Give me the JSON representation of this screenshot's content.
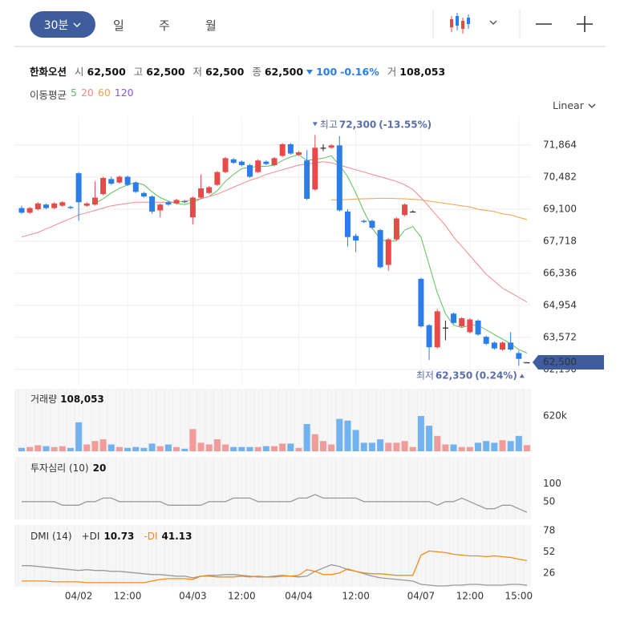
{
  "toolbar": {
    "tabs": [
      "30분",
      "일",
      "주",
      "월"
    ]
  },
  "quote": {
    "name": "한화오션",
    "fields": [
      {
        "label": "시",
        "value": "62,500"
      },
      {
        "label": "고",
        "value": "62,500"
      },
      {
        "label": "저",
        "value": "62,500"
      },
      {
        "label": "종",
        "value": "62,500"
      }
    ],
    "change": "100",
    "change_pct": "-0.16%",
    "volume_label": "거",
    "volume": "108,053"
  },
  "chart_data": [
    {
      "type": "candlestick",
      "categories": [
        null,
        null,
        null,
        null,
        null,
        null,
        null,
        "04/02",
        null,
        null,
        null,
        null,
        null,
        "12:00",
        null,
        null,
        null,
        null,
        null,
        null,
        null,
        "04/03",
        null,
        null,
        null,
        null,
        null,
        "12:00",
        null,
        null,
        null,
        null,
        null,
        null,
        "04/04",
        null,
        null,
        null,
        null,
        null,
        null,
        "12:00",
        null,
        null,
        null,
        null,
        null,
        null,
        null,
        "04/07",
        null,
        null,
        null,
        null,
        null,
        "12:00",
        null,
        null,
        null,
        null,
        null,
        "15:00",
        null
      ],
      "open": [
        69150,
        68950,
        69100,
        69300,
        69150,
        69250,
        69200,
        70650,
        69250,
        69300,
        69750,
        70400,
        70250,
        70500,
        70250,
        69800,
        69650,
        69050,
        69400,
        69350,
        69450,
        68750,
        69600,
        69800,
        70150,
        70700,
        71250,
        71150,
        71000,
        70700,
        71150,
        71000,
        71400,
        71900,
        71450,
        71200,
        69950,
        71750,
        71750,
        71850,
        69000,
        67950,
        68600,
        68600,
        68200,
        66700,
        67800,
        68850,
        69000,
        66100,
        64100,
        63150,
        64000,
        64600,
        64050,
        63800,
        64300,
        63600,
        63350,
        63050,
        63350,
        62900,
        62500
      ],
      "high": [
        69250,
        69200,
        69400,
        69350,
        69400,
        69450,
        69250,
        70700,
        69400,
        70300,
        70500,
        70500,
        70550,
        70550,
        70300,
        69850,
        69700,
        69350,
        69450,
        69550,
        69500,
        69650,
        70600,
        70100,
        70750,
        71350,
        71300,
        71200,
        71050,
        71250,
        71200,
        71350,
        71950,
        71950,
        71600,
        71650,
        72300,
        71900,
        71900,
        72250,
        69100,
        68050,
        68650,
        68650,
        68250,
        67850,
        68750,
        69350,
        69050,
        66150,
        64150,
        64800,
        64300,
        64650,
        64450,
        64400,
        64350,
        63650,
        63400,
        63400,
        63800,
        63000,
        62500
      ],
      "low": [
        68900,
        68900,
        69050,
        69100,
        69100,
        69200,
        69100,
        68600,
        69200,
        69250,
        69700,
        70150,
        70200,
        70100,
        69800,
        69600,
        68900,
        68750,
        69250,
        69300,
        69350,
        68450,
        69550,
        69750,
        70100,
        70650,
        71050,
        70950,
        70450,
        70650,
        71000,
        70950,
        71350,
        71450,
        71400,
        69500,
        69900,
        71600,
        71700,
        69000,
        67500,
        67250,
        68500,
        68250,
        66550,
        66450,
        67750,
        68800,
        69000,
        64000,
        62600,
        63100,
        63450,
        64150,
        64000,
        63750,
        63650,
        63250,
        63050,
        63000,
        63000,
        62350,
        62500
      ],
      "close": [
        68950,
        69150,
        69350,
        69150,
        69350,
        69400,
        69150,
        69400,
        69350,
        69600,
        70450,
        70200,
        70500,
        70150,
        69850,
        69650,
        69000,
        69300,
        69300,
        69500,
        69400,
        69600,
        70000,
        70050,
        70700,
        71300,
        71100,
        71000,
        70500,
        71200,
        71050,
        71300,
        71900,
        71500,
        71550,
        69550,
        71750,
        71750,
        71850,
        69050,
        67900,
        67750,
        68550,
        68300,
        66600,
        67800,
        68700,
        69300,
        69000,
        64050,
        63150,
        64700,
        64000,
        64200,
        64400,
        64350,
        63700,
        63300,
        63100,
        63350,
        63050,
        62650,
        62500
      ],
      "up_color": "#e84a4a",
      "down_color": "#2b7de9",
      "doji_color": "#222222",
      "ylim": [
        61534,
        73108
      ],
      "yticks": [
        {
          "value": 62190,
          "label": "62,190"
        },
        {
          "value": 63572,
          "label": "63,572"
        },
        {
          "value": 64954,
          "label": "64,954"
        },
        {
          "value": 66336,
          "label": "66,336"
        },
        {
          "value": 67718,
          "label": "67,718"
        },
        {
          "value": 69100,
          "label": "69,100"
        },
        {
          "value": 70482,
          "label": "70,482"
        },
        {
          "value": 71864,
          "label": "71,864"
        }
      ],
      "grid": true,
      "scale": "Linear",
      "legend_title": "이동평균",
      "series": [
        {
          "name": "5",
          "color": "#5cc25a",
          "values": [
            null,
            null,
            null,
            null,
            null,
            null,
            null,
            null,
            null,
            69350,
            69550,
            69800,
            70000,
            70150,
            70250,
            70150,
            69850,
            69600,
            69450,
            69350,
            69300,
            69400,
            69550,
            69650,
            69900,
            70300,
            70600,
            70850,
            70900,
            70950,
            70950,
            71000,
            71200,
            71350,
            71450,
            71200,
            71250,
            71300,
            71400,
            71000,
            70500,
            69800,
            69000,
            68300,
            67800,
            67700,
            67750,
            68200,
            68350,
            67900,
            66700,
            65500,
            64600,
            64100,
            64000,
            64100,
            64100,
            63900,
            63700,
            63500,
            63300,
            63050,
            62900
          ]
        },
        {
          "name": "20",
          "color": "#f28a8a",
          "values": [
            67900,
            68000,
            68100,
            68250,
            68400,
            68550,
            68700,
            68850,
            68950,
            69050,
            69150,
            69250,
            69300,
            69350,
            69400,
            69400,
            69400,
            69400,
            69400,
            69400,
            69450,
            69500,
            69550,
            69650,
            69750,
            69900,
            70050,
            70200,
            70350,
            70450,
            70600,
            70700,
            70800,
            70900,
            71000,
            71050,
            71100,
            71150,
            71100,
            71000,
            70900,
            70800,
            70700,
            70600,
            70500,
            70400,
            70300,
            70150,
            69950,
            69600,
            69200,
            68800,
            68400,
            67900,
            67500,
            67100,
            66700,
            66300,
            66000,
            65700,
            65500,
            65300,
            65100
          ]
        },
        {
          "name": "60",
          "color": "#f5a04a",
          "values": [
            null,
            null,
            null,
            null,
            null,
            null,
            null,
            null,
            null,
            null,
            null,
            null,
            null,
            null,
            null,
            null,
            null,
            null,
            null,
            null,
            null,
            null,
            null,
            null,
            null,
            null,
            null,
            null,
            null,
            null,
            null,
            null,
            null,
            null,
            null,
            null,
            null,
            null,
            69500,
            69500,
            69520,
            69540,
            69550,
            69560,
            69570,
            69570,
            69560,
            69550,
            69530,
            69500,
            69450,
            69400,
            69350,
            69300,
            69250,
            69200,
            69100,
            69050,
            69000,
            68900,
            68850,
            68750,
            68650
          ]
        },
        {
          "name": "120",
          "color": "#8a57e6",
          "values": [
            null,
            null,
            null,
            null,
            null,
            null,
            null,
            null,
            null,
            null,
            null,
            null,
            null,
            null,
            null,
            null,
            null,
            null,
            null,
            null,
            null,
            null,
            null,
            null,
            null,
            null,
            null,
            null,
            null,
            null,
            null,
            null,
            null,
            null,
            null,
            null,
            null,
            null,
            null,
            null,
            null,
            null,
            null,
            null,
            null,
            null,
            null,
            null,
            null,
            null,
            null,
            null,
            null,
            null,
            null,
            null,
            null,
            null,
            null,
            null,
            null,
            null,
            null
          ]
        }
      ],
      "high_marker": {
        "label": "최고",
        "value": 72300,
        "value_label": "72,300",
        "change": "(-13.55%)"
      },
      "low_marker": {
        "label": "최저",
        "value": 62350,
        "value_label": "62,350",
        "change": "(0.24%)"
      },
      "marker_color": "#5a6fa8",
      "last_price": 62500,
      "last_price_label": "62,500",
      "last_price_color": "#3e5c9e"
    },
    {
      "type": "bar",
      "title": "거래량",
      "current_label": "108,053",
      "values": [
        60000,
        75000,
        105000,
        90000,
        75000,
        90000,
        60000,
        510000,
        120000,
        180000,
        210000,
        120000,
        75000,
        60000,
        75000,
        60000,
        135000,
        90000,
        120000,
        75000,
        45000,
        390000,
        150000,
        120000,
        210000,
        120000,
        75000,
        75000,
        75000,
        75000,
        90000,
        90000,
        135000,
        135000,
        60000,
        480000,
        300000,
        180000,
        120000,
        570000,
        540000,
        375000,
        150000,
        150000,
        210000,
        150000,
        150000,
        180000,
        75000,
        620000,
        450000,
        270000,
        120000,
        120000,
        75000,
        75000,
        150000,
        180000,
        150000,
        195000,
        180000,
        270000,
        108053
      ],
      "up_color": "#f29b9b",
      "down_color": "#72b2ef",
      "ylim": [
        0,
        1100000
      ],
      "yticks": [
        {
          "value": 620000,
          "label": "620k"
        }
      ]
    },
    {
      "type": "line",
      "title": "투자심리 (10)",
      "series": [
        {
          "color": "#9a9a9a",
          "values": [
            50,
            50,
            50,
            50,
            50,
            40,
            40,
            40,
            50,
            50,
            60,
            60,
            50,
            50,
            50,
            50,
            50,
            50,
            40,
            40,
            40,
            40,
            40,
            50,
            50,
            50,
            60,
            60,
            60,
            50,
            50,
            50,
            50,
            50,
            60,
            60,
            70,
            60,
            60,
            60,
            60,
            60,
            50,
            50,
            50,
            50,
            50,
            50,
            50,
            50,
            50,
            40,
            50,
            50,
            60,
            50,
            40,
            30,
            30,
            40,
            40,
            30,
            20
          ]
        }
      ],
      "ylim": [
        0,
        176
      ],
      "yticks": [
        50,
        100
      ]
    },
    {
      "type": "line",
      "title": "DMI (14)",
      "series": [
        {
          "name": "+DI",
          "color": "#9a9a9a",
          "values": [
            35,
            35,
            34,
            33,
            32,
            31,
            30,
            29,
            30,
            29,
            29,
            28,
            28,
            27,
            26,
            25,
            24,
            24,
            23,
            22,
            22,
            20,
            22,
            23,
            23,
            24,
            24,
            23,
            22,
            21,
            21,
            22,
            23,
            22,
            21,
            22,
            28,
            32,
            36,
            34,
            30,
            28,
            25,
            22,
            20,
            19,
            18,
            17,
            16,
            12,
            11,
            10,
            10,
            11,
            11,
            12,
            12,
            11,
            11,
            11,
            12,
            12,
            10.73
          ]
        },
        {
          "name": "-DI",
          "color": "#f08c1e",
          "values": [
            16,
            16,
            16,
            16,
            15,
            15,
            15,
            15,
            14,
            14,
            14,
            14,
            14,
            14,
            14,
            14,
            16,
            18,
            19,
            19,
            19,
            18,
            22,
            22,
            21,
            21,
            21,
            22,
            21,
            22,
            21,
            21,
            22,
            22,
            23,
            30,
            28,
            24,
            24,
            26,
            31,
            28,
            26,
            25,
            25,
            24,
            23,
            23,
            23,
            48,
            53,
            52,
            51,
            49,
            48,
            47,
            47,
            46,
            47,
            46,
            45,
            43,
            41.13
          ]
        }
      ],
      "ylim": [
        9,
        85
      ],
      "yticks": [
        26,
        52,
        78
      ]
    }
  ]
}
